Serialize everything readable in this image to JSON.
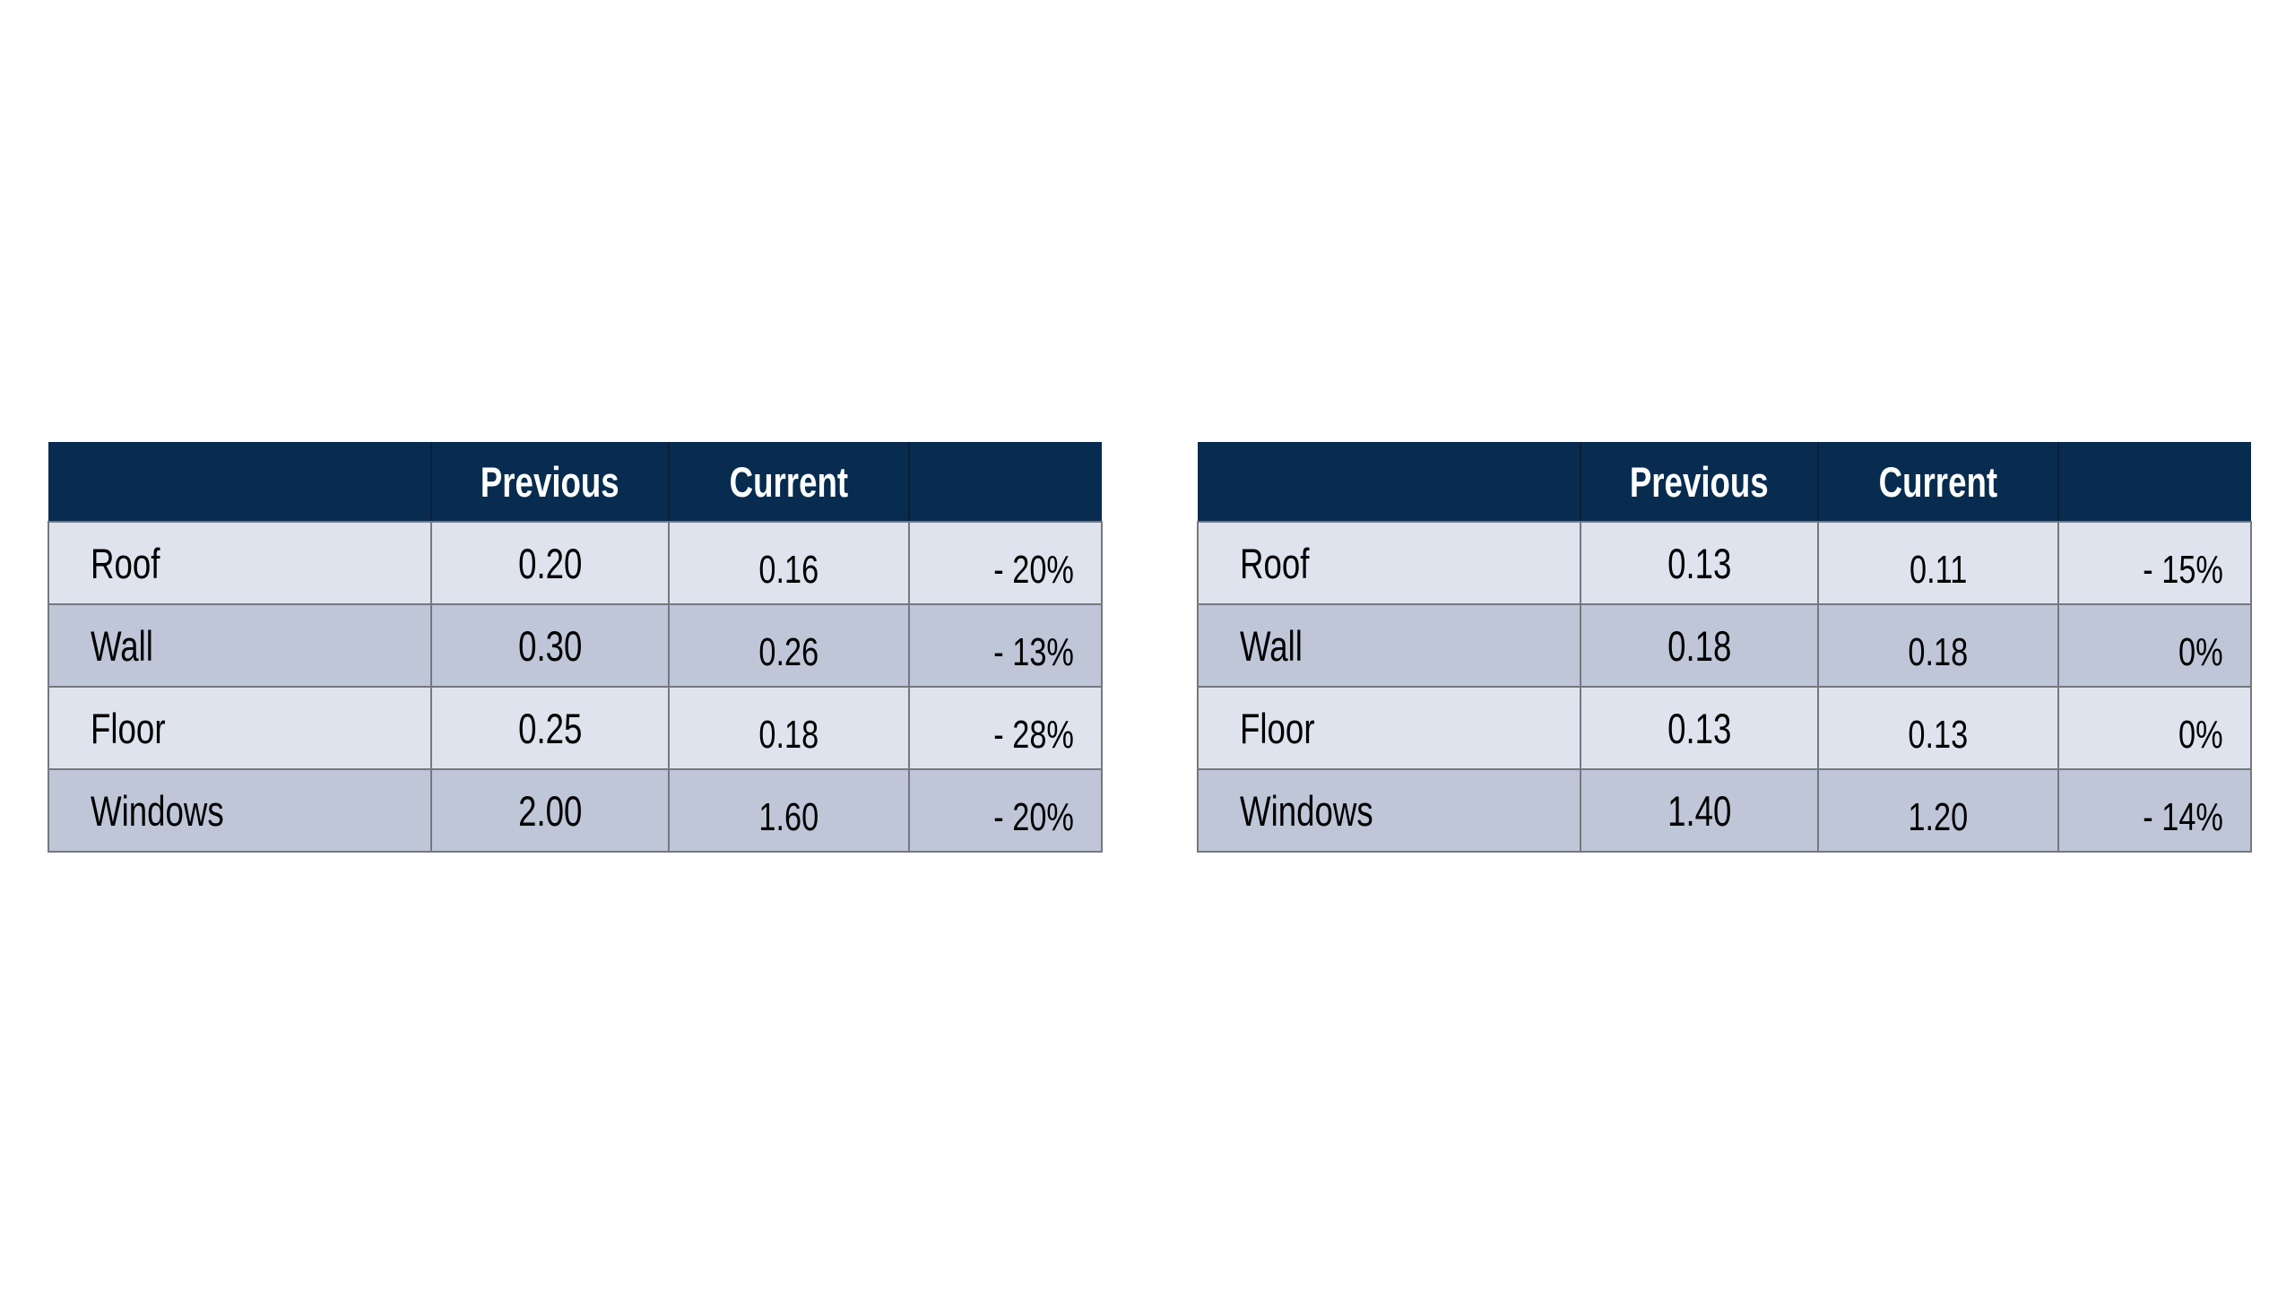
{
  "page": {
    "background": "#ffffff"
  },
  "colors": {
    "header_bg": "#072c4f",
    "header_text": "#ffffff",
    "row_light_bg": "#dfe3ee",
    "row_dark_bg": "#bec6d8",
    "grid_line": "#75787f",
    "header_divider": "#0a1f38",
    "body_text": "#000000"
  },
  "tables": [
    {
      "columns": {
        "label": "",
        "previous": "Previous",
        "current": "Current",
        "change": ""
      },
      "rows": [
        {
          "label": "Roof",
          "previous": "0.20",
          "current": "0.16",
          "change": "- 20%"
        },
        {
          "label": "Wall",
          "previous": "0.30",
          "current": "0.26",
          "change": "- 13%"
        },
        {
          "label": "Floor",
          "previous": "0.25",
          "current": "0.18",
          "change": "- 28%"
        },
        {
          "label": "Windows",
          "previous": "2.00",
          "current": "1.60",
          "change": "- 20%"
        }
      ]
    },
    {
      "columns": {
        "label": "",
        "previous": "Previous",
        "current": "Current",
        "change": ""
      },
      "rows": [
        {
          "label": "Roof",
          "previous": "0.13",
          "current": "0.11",
          "change": "- 15%"
        },
        {
          "label": "Wall",
          "previous": "0.18",
          "current": "0.18",
          "change": "0%"
        },
        {
          "label": "Floor",
          "previous": "0.13",
          "current": "0.13",
          "change": "0%"
        },
        {
          "label": "Windows",
          "previous": "1.40",
          "current": "1.20",
          "change": "- 14%"
        }
      ]
    }
  ],
  "chart_data": [
    {
      "type": "table",
      "columns": [
        "",
        "Previous",
        "Current",
        ""
      ],
      "rows": [
        [
          "Roof",
          "0.20",
          "0.16",
          "- 20%"
        ],
        [
          "Wall",
          "0.30",
          "0.26",
          "- 13%"
        ],
        [
          "Floor",
          "0.25",
          "0.18",
          "- 28%"
        ],
        [
          "Windows",
          "2.00",
          "1.60",
          "- 20%"
        ]
      ]
    },
    {
      "type": "table",
      "columns": [
        "",
        "Previous",
        "Current",
        ""
      ],
      "rows": [
        [
          "Roof",
          "0.13",
          "0.11",
          "- 15%"
        ],
        [
          "Wall",
          "0.18",
          "0.18",
          "0%"
        ],
        [
          "Floor",
          "0.13",
          "0.13",
          "0%"
        ],
        [
          "Windows",
          "1.40",
          "1.20",
          "- 14%"
        ]
      ]
    }
  ]
}
